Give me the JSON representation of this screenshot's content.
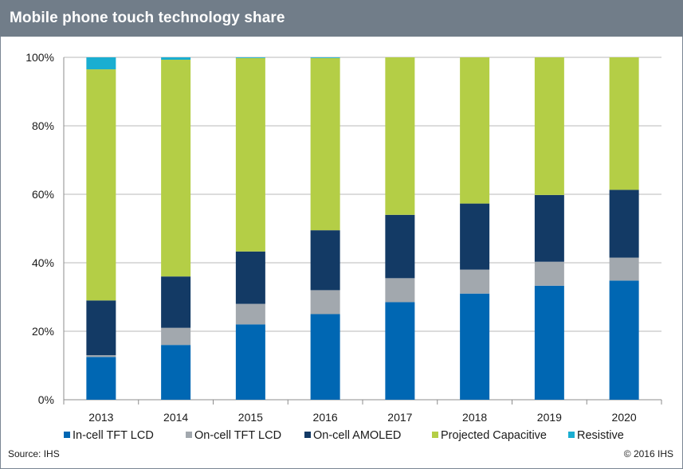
{
  "header": {
    "title": "Mobile phone touch technology share"
  },
  "footer": {
    "source": "Source: IHS",
    "copyright": "© 2016 IHS"
  },
  "chart_data": {
    "type": "bar",
    "stacked": true,
    "categories": [
      "2013",
      "2014",
      "2015",
      "2016",
      "2017",
      "2018",
      "2019",
      "2020"
    ],
    "y_ticks": [
      "0%",
      "20%",
      "40%",
      "60%",
      "80%",
      "100%"
    ],
    "ylim": [
      0,
      100
    ],
    "grid": true,
    "legend_position": "bottom",
    "series": [
      {
        "name": "In-cell TFT LCD",
        "color": "#0067b3",
        "values": [
          12.5,
          16,
          22,
          25,
          28.5,
          31,
          33.3,
          34.8
        ]
      },
      {
        "name": "On-cell TFT LCD",
        "color": "#a2a8ae",
        "values": [
          0.5,
          5,
          6,
          7,
          7,
          7,
          7,
          6.7
        ]
      },
      {
        "name": "On-cell AMOLED",
        "color": "#133a65",
        "values": [
          16,
          15,
          15.3,
          17.5,
          18.5,
          19.3,
          19.5,
          19.8
        ]
      },
      {
        "name": "Projected Capacitive",
        "color": "#b4ce46",
        "values": [
          67.5,
          63.3,
          56.5,
          50.3,
          46,
          42.7,
          40.2,
          38.7
        ]
      },
      {
        "name": "Resistive",
        "color": "#1aaed1",
        "values": [
          3.5,
          0.7,
          0.2,
          0.2,
          0,
          0,
          0,
          0
        ]
      }
    ]
  }
}
